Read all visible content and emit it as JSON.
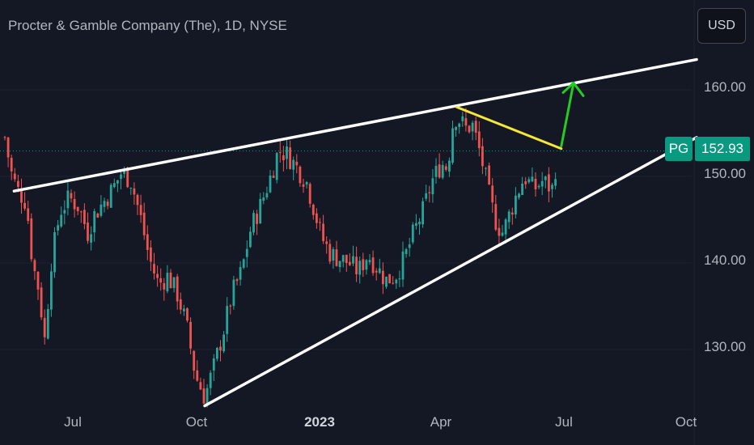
{
  "chart_data": {
    "type": "candlestick",
    "title": "Procter & Gamble Company (The), 1D, NYSE",
    "symbol": "PG",
    "currency": "USD",
    "last_price": "152.93",
    "y_ticks": [
      "160.00",
      "150.00",
      "140.00",
      "130.00"
    ],
    "x_ticks": [
      "Jul",
      "Oct",
      "2023",
      "Apr",
      "Jul",
      "Oct"
    ],
    "ylim": [
      123,
      167
    ],
    "colors": {
      "up": "#26a69a",
      "down": "#ef5350",
      "trendline": "#ffffff",
      "yellow_line": "#f5e639",
      "arrow": "#22cc22",
      "price_line": "#089981"
    },
    "price_path": [
      [
        0,
        154.5
      ],
      [
        0.02,
        150.5
      ],
      [
        0.04,
        148.5
      ],
      [
        0.07,
        147
      ],
      [
        0.09,
        140
      ],
      [
        0.11,
        137
      ],
      [
        0.13,
        131
      ],
      [
        0.15,
        140
      ],
      [
        0.18,
        146
      ],
      [
        0.21,
        147.5
      ],
      [
        0.24,
        146.5
      ],
      [
        0.27,
        143.5
      ],
      [
        0.29,
        145.5
      ],
      [
        0.32,
        147
      ],
      [
        0.35,
        148.5
      ],
      [
        0.38,
        150.5
      ],
      [
        0.41,
        149.5
      ],
      [
        0.44,
        145.5
      ],
      [
        0.47,
        140.5
      ],
      [
        0.5,
        137.5
      ],
      [
        0.53,
        138.5
      ],
      [
        0.56,
        136.5
      ],
      [
        0.59,
        133
      ],
      [
        0.62,
        127
      ],
      [
        0.65,
        124.5
      ],
      [
        0.68,
        128
      ],
      [
        0.71,
        132
      ],
      [
        0.74,
        136.5
      ],
      [
        0.77,
        139
      ],
      [
        0.8,
        144
      ],
      [
        0.83,
        146.5
      ],
      [
        0.86,
        149.5
      ],
      [
        0.89,
        153
      ],
      [
        0.92,
        152.5
      ],
      [
        0.95,
        151
      ],
      [
        0.98,
        149.5
      ],
      [
        1.0,
        147
      ],
      [
        1.03,
        143
      ],
      [
        1.06,
        141
      ],
      [
        1.09,
        140.5
      ],
      [
        1.12,
        140
      ],
      [
        1.15,
        139
      ],
      [
        1.18,
        141
      ],
      [
        1.21,
        139.5
      ],
      [
        1.24,
        138
      ],
      [
        1.27,
        138.5
      ],
      [
        1.3,
        140.5
      ],
      [
        1.33,
        143.5
      ],
      [
        1.36,
        146
      ],
      [
        1.39,
        149.5
      ],
      [
        1.42,
        151.5
      ],
      [
        1.44,
        151
      ],
      [
        1.46,
        157
      ],
      [
        1.48,
        156.5
      ],
      [
        1.5,
        155.5
      ],
      [
        1.52,
        156
      ],
      [
        1.54,
        153.5
      ],
      [
        1.56,
        150.5
      ],
      [
        1.58,
        147
      ],
      [
        1.6,
        144.5
      ],
      [
        1.62,
        143.5
      ],
      [
        1.64,
        145.5
      ],
      [
        1.66,
        147.5
      ],
      [
        1.69,
        150
      ],
      [
        1.72,
        148.5
      ],
      [
        1.75,
        149.5
      ],
      [
        1.78,
        148.5
      ],
      [
        1.8,
        152.9
      ]
    ],
    "trendlines": [
      {
        "name": "upper-trendline",
        "from": [
          0.03,
          148.3
        ],
        "to": [
          2.25,
          163.5
        ]
      },
      {
        "name": "lower-trendline",
        "from": [
          0.65,
          123.5
        ],
        "to": [
          2.25,
          154.5
        ]
      },
      {
        "name": "yellow-trendline",
        "from": [
          1.47,
          158
        ],
        "to": [
          1.81,
          153.2
        ]
      }
    ],
    "arrow": {
      "from": [
        1.81,
        153.5
      ],
      "to": [
        1.85,
        160.8
      ]
    }
  }
}
